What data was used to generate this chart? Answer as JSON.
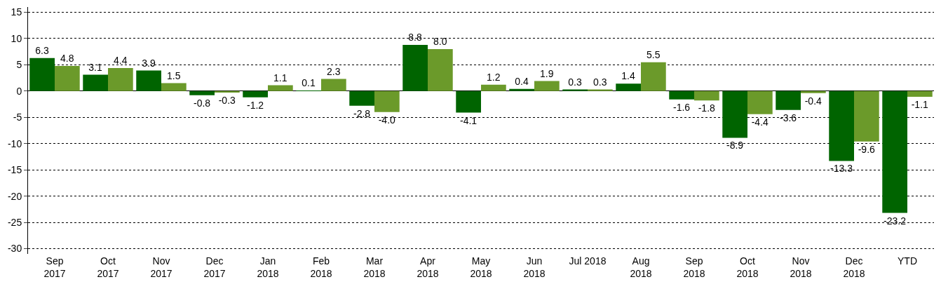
{
  "chart_data": {
    "type": "bar",
    "categories": [
      "Sep\n2017",
      "Oct\n2017",
      "Nov\n2017",
      "Dec\n2017",
      "Jan\n2018",
      "Feb\n2018",
      "Mar\n2018",
      "Apr\n2018",
      "May\n2018",
      "Jun\n2018",
      "Jul 2018",
      "Aug\n2018",
      "Sep\n2018",
      "Oct\n2018",
      "Nov\n2018",
      "Dec\n2018",
      "YTD"
    ],
    "series": [
      {
        "color": "#006400",
        "values": [
          6.3,
          3.1,
          3.9,
          -0.8,
          -1.2,
          0.1,
          -2.8,
          8.8,
          -4.1,
          0.4,
          0.3,
          1.4,
          -1.6,
          -8.9,
          -3.6,
          -13.3,
          -23.2
        ],
        "value_labels": [
          "6.3",
          "3.1",
          "3.9",
          "-0.8",
          "-1.2",
          "0.1",
          "-2.8",
          "8.8",
          "-4.1",
          "0.4",
          "0.3",
          "1.4",
          "-1.6",
          "-8.9",
          "-3.6",
          "-13.3",
          "-23.2"
        ]
      },
      {
        "color": "#6b9a2a",
        "values": [
          4.8,
          4.4,
          1.5,
          -0.3,
          1.1,
          2.3,
          -4.0,
          8.0,
          1.2,
          1.9,
          0.3,
          5.5,
          -1.8,
          -4.4,
          -0.4,
          -9.6,
          -1.1
        ],
        "value_labels": [
          "4.8",
          "4.4",
          "1.5",
          "-0.3",
          "1.1",
          "2.3",
          "-4.0",
          "8.0",
          "1.2",
          "1.9",
          "0.3",
          "5.5",
          "-1.8",
          "-4.4",
          "-0.4",
          "-9.6",
          "-1.1"
        ]
      }
    ],
    "ylim": [
      -31,
      16
    ],
    "yticks": [
      -30,
      -25,
      -20,
      -15,
      -10,
      -5,
      0,
      5,
      10,
      15
    ],
    "grid": "y"
  }
}
